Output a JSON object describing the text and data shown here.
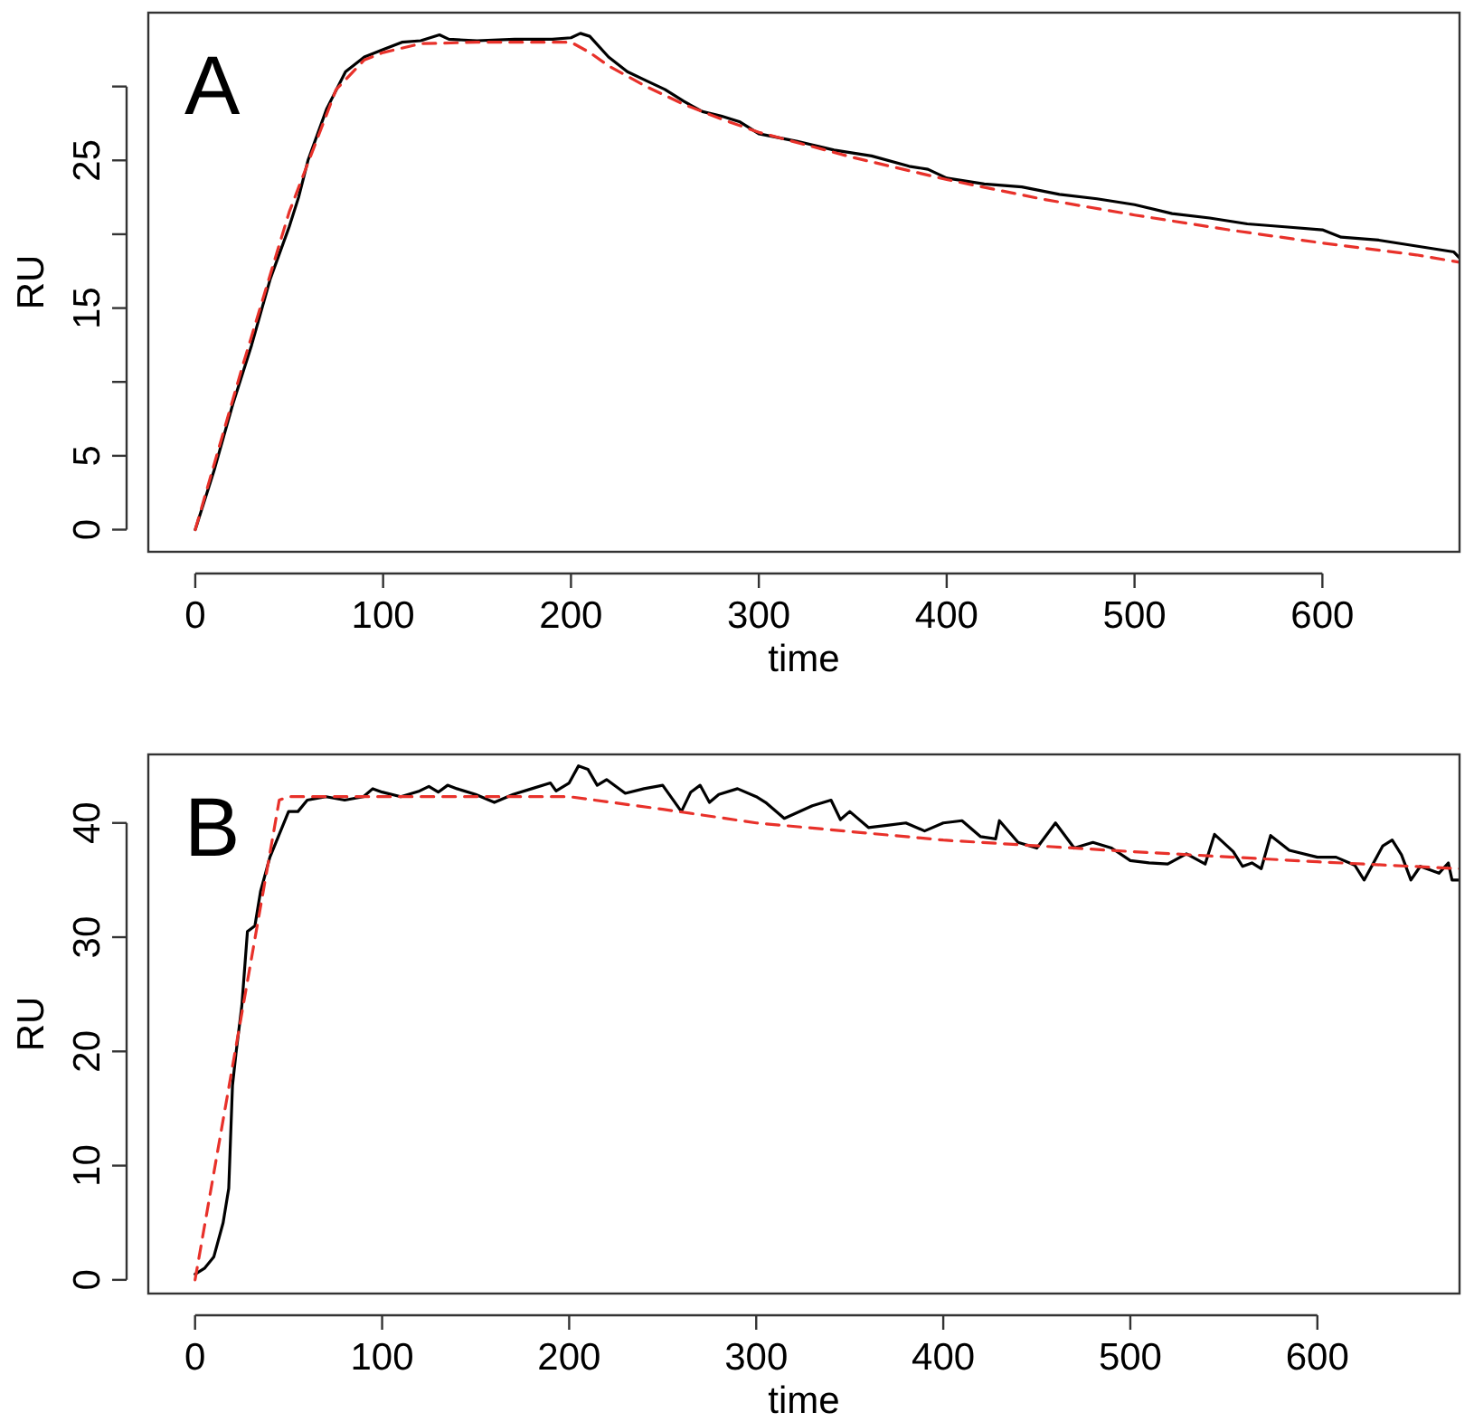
{
  "chart_data": [
    {
      "type": "line",
      "title": "A",
      "xlabel": "time",
      "ylabel": "RU",
      "xlim": [
        -25,
        673
      ],
      "ylim": [
        -1.5,
        35
      ],
      "xticks": [
        0,
        100,
        200,
        300,
        400,
        500,
        600
      ],
      "yticks": [
        0,
        5,
        {
          "value": 10,
          "label": null
        },
        15,
        {
          "value": 20,
          "label": null
        },
        25,
        {
          "value": 30,
          "label": null
        }
      ],
      "grid": false,
      "marker": "none",
      "series": [
        {
          "color": "#000000",
          "line_style": "solid",
          "x": [
            0,
            10,
            20,
            30,
            40,
            50,
            55,
            60,
            70,
            80,
            90,
            100,
            110,
            120,
            130,
            135,
            150,
            170,
            190,
            200,
            205,
            210,
            220,
            230,
            240,
            250,
            260,
            270,
            280,
            290,
            300,
            320,
            340,
            360,
            380,
            390,
            400,
            420,
            440,
            460,
            480,
            500,
            520,
            540,
            560,
            580,
            600,
            610,
            630,
            650,
            670,
            673
          ],
          "values": [
            0,
            4,
            8.5,
            12.5,
            17,
            20.5,
            22.5,
            25,
            28.5,
            31,
            32,
            32.5,
            33,
            33.1,
            33.5,
            33.2,
            33.1,
            33.2,
            33.2,
            33.3,
            33.6,
            33.4,
            32,
            31,
            30.4,
            29.8,
            29,
            28.3,
            28,
            27.6,
            26.8,
            26.3,
            25.7,
            25.3,
            24.6,
            24.4,
            23.8,
            23.4,
            23.2,
            22.7,
            22.4,
            22,
            21.4,
            21.1,
            20.7,
            20.5,
            20.3,
            19.8,
            19.6,
            19.2,
            18.8,
            18.4
          ]
        },
        {
          "color": "#e8312a",
          "line_style": "dashed",
          "x": [
            0,
            25,
            50,
            75,
            90,
            100,
            120,
            150,
            200,
            210,
            220,
            240,
            260,
            280,
            300,
            350,
            400,
            450,
            500,
            550,
            600,
            650,
            673
          ],
          "values": [
            0,
            11,
            21.5,
            29.8,
            31.8,
            32.3,
            32.9,
            33,
            33,
            32.3,
            31.4,
            30,
            28.8,
            27.8,
            26.9,
            25.2,
            23.7,
            22.4,
            21.3,
            20.3,
            19.4,
            18.6,
            18.1
          ]
        }
      ]
    },
    {
      "type": "line",
      "title": "B",
      "xlabel": "time",
      "ylabel": "RU",
      "xlim": [
        -25,
        676
      ],
      "ylim": [
        -1.2,
        46
      ],
      "xticks": [
        0,
        100,
        200,
        300,
        400,
        500,
        600
      ],
      "yticks": [
        0,
        10,
        20,
        30,
        40
      ],
      "grid": false,
      "marker": "none",
      "series": [
        {
          "color": "#000000",
          "line_style": "solid",
          "x": [
            0,
            5,
            10,
            15,
            18,
            20,
            22,
            25,
            28,
            32,
            35,
            40,
            45,
            50,
            55,
            60,
            70,
            80,
            90,
            95,
            100,
            110,
            120,
            125,
            130,
            135,
            140,
            150,
            160,
            170,
            180,
            190,
            193,
            200,
            205,
            210,
            215,
            220,
            230,
            240,
            250,
            260,
            265,
            270,
            275,
            280,
            290,
            300,
            305,
            315,
            330,
            340,
            345,
            350,
            360,
            370,
            380,
            390,
            400,
            410,
            420,
            428,
            430,
            440,
            450,
            460,
            470,
            480,
            490,
            500,
            510,
            520,
            530,
            540,
            545,
            555,
            560,
            565,
            570,
            575,
            585,
            600,
            610,
            620,
            625,
            635,
            640,
            645,
            650,
            655,
            665,
            670,
            672,
            676
          ],
          "values": [
            0.5,
            1,
            2,
            5,
            8,
            17,
            20,
            24,
            30.5,
            31,
            34,
            37,
            39,
            41,
            41,
            42,
            42.3,
            42,
            42.3,
            43,
            42.7,
            42.3,
            42.8,
            43.2,
            42.7,
            43.3,
            43,
            42.5,
            41.8,
            42.5,
            43,
            43.5,
            42.8,
            43.5,
            45,
            44.7,
            43.3,
            43.8,
            42.6,
            43,
            43.3,
            41,
            42.7,
            43.3,
            41.8,
            42.5,
            43,
            42.3,
            41.8,
            40.4,
            41.5,
            42,
            40.3,
            41,
            39.6,
            39.8,
            40,
            39.3,
            40,
            40.2,
            38.8,
            38.6,
            40.2,
            38.3,
            37.8,
            40,
            37.8,
            38.3,
            37.8,
            36.7,
            36.5,
            36.4,
            37.3,
            36.4,
            39,
            37.5,
            36.2,
            36.5,
            36,
            38.9,
            37.6,
            37,
            37,
            36.3,
            35,
            38,
            38.5,
            37.2,
            35,
            36.2,
            35.6,
            36.5,
            35,
            35
          ]
        },
        {
          "color": "#e8312a",
          "line_style": "dashed",
          "x": [
            0,
            45,
            50,
            100,
            150,
            200,
            250,
            300,
            400,
            500,
            600,
            676
          ],
          "values": [
            0,
            42,
            42.3,
            42.3,
            42.3,
            42.3,
            41.2,
            40,
            38.5,
            37.5,
            36.6,
            36
          ]
        }
      ]
    }
  ]
}
